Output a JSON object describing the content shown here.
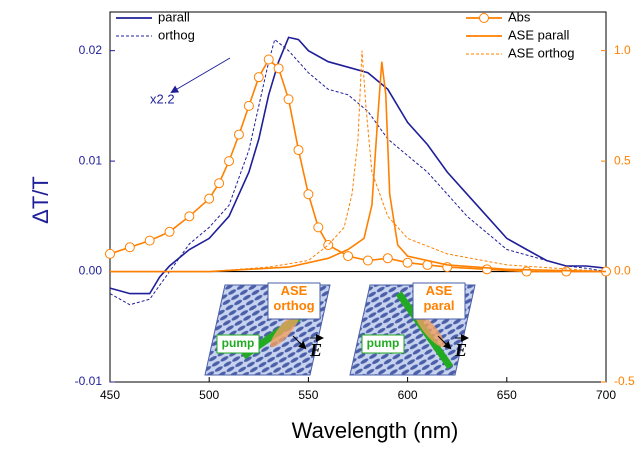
{
  "chart_data": {
    "type": "line",
    "xlabel": "Wavelength (nm)",
    "ylabel": "ΔT/T",
    "xlim": [
      450,
      700
    ],
    "xticks": [
      450,
      500,
      550,
      600,
      650,
      700
    ],
    "ylim": [
      -0.01,
      0.0235
    ],
    "yticks": [
      {
        "value": -0.01,
        "label": "-0.01"
      },
      {
        "value": 0,
        "label": "0.00"
      },
      {
        "value": 0.01,
        "label": "0.01"
      },
      {
        "value": 0.02,
        "label": "0.02"
      }
    ],
    "y2lim": [
      -0.5,
      1.175
    ],
    "y2ticks": [
      -0.5,
      {
        "value": 0,
        "label": "0.0"
      },
      0.5,
      {
        "value": 1,
        "label": "1.0"
      }
    ],
    "y_color": "#1f1f99",
    "y2_color": "#ff8000",
    "series": [
      {
        "name": "parall",
        "color": "#1f1f99",
        "style": "solid",
        "x": [
          450,
          460,
          470,
          475,
          480,
          490,
          500,
          510,
          520,
          525,
          530,
          535,
          540,
          545,
          550,
          560,
          570,
          580,
          590,
          600,
          610,
          620,
          630,
          640,
          650,
          660,
          670,
          680,
          690,
          700
        ],
        "values": [
          -0.0015,
          -0.002,
          -0.002,
          -0.0005,
          0.0005,
          0.002,
          0.003,
          0.005,
          0.009,
          0.012,
          0.016,
          0.019,
          0.0212,
          0.021,
          0.02,
          0.019,
          0.0185,
          0.018,
          0.0165,
          0.0135,
          0.0115,
          0.009,
          0.007,
          0.005,
          0.003,
          0.002,
          0.001,
          0.0005,
          0.0005,
          0.0003
        ]
      },
      {
        "name": "orthog",
        "color": "#1f1f99",
        "style": "dashed",
        "x": [
          450,
          460,
          470,
          480,
          490,
          500,
          510,
          520,
          525,
          530,
          533,
          540,
          550,
          560,
          570,
          580,
          590,
          600,
          610,
          620,
          630,
          640,
          650,
          660,
          670,
          680,
          690,
          700
        ],
        "values": [
          -0.002,
          -0.003,
          -0.0025,
          0,
          0.0025,
          0.004,
          0.006,
          0.011,
          0.015,
          0.019,
          0.021,
          0.02,
          0.018,
          0.0165,
          0.016,
          0.0145,
          0.012,
          0.0105,
          0.009,
          0.007,
          0.005,
          0.0035,
          0.002,
          0.0015,
          0.001,
          0.0005,
          0.0003,
          0
        ]
      },
      {
        "name": "Abs",
        "color": "#ff8000",
        "style": "circles",
        "axis": "y2",
        "x": [
          450,
          460,
          470,
          480,
          490,
          500,
          505,
          510,
          515,
          520,
          525,
          530,
          535,
          540,
          545,
          550,
          555,
          560,
          570,
          580,
          590,
          600,
          610,
          620,
          640,
          660,
          680,
          700
        ],
        "values": [
          0.08,
          0.11,
          0.14,
          0.18,
          0.25,
          0.33,
          0.4,
          0.5,
          0.62,
          0.75,
          0.88,
          0.96,
          0.92,
          0.78,
          0.55,
          0.35,
          0.2,
          0.12,
          0.07,
          0.05,
          0.06,
          0.04,
          0.03,
          0.02,
          0.01,
          0,
          0,
          0
        ]
      },
      {
        "name": "ASE parall",
        "color": "#ff8000",
        "style": "solid",
        "axis": "y2",
        "x": [
          450,
          500,
          520,
          540,
          560,
          570,
          578,
          582,
          585,
          587,
          589,
          591,
          595,
          600,
          620,
          650,
          700
        ],
        "values": [
          0,
          0,
          0.01,
          0.02,
          0.06,
          0.1,
          0.15,
          0.3,
          0.7,
          0.95,
          0.8,
          0.35,
          0.12,
          0.07,
          0.03,
          0.01,
          0
        ]
      },
      {
        "name": "ASE orthog",
        "color": "#ff8000",
        "style": "dashed",
        "axis": "y2",
        "x": [
          450,
          500,
          530,
          550,
          560,
          568,
          572,
          575,
          577,
          579,
          582,
          590,
          600,
          620,
          650,
          700
        ],
        "values": [
          0,
          0,
          0.02,
          0.05,
          0.12,
          0.2,
          0.35,
          0.6,
          1.0,
          0.75,
          0.45,
          0.25,
          0.15,
          0.08,
          0.03,
          0
        ]
      }
    ],
    "annotation": "x2.2",
    "inset": {
      "left": {
        "label": "ASE\northog",
        "pump": "pump",
        "field": "E"
      },
      "right": {
        "label": "ASE\nparal",
        "pump": "pump",
        "field": "E"
      }
    }
  }
}
